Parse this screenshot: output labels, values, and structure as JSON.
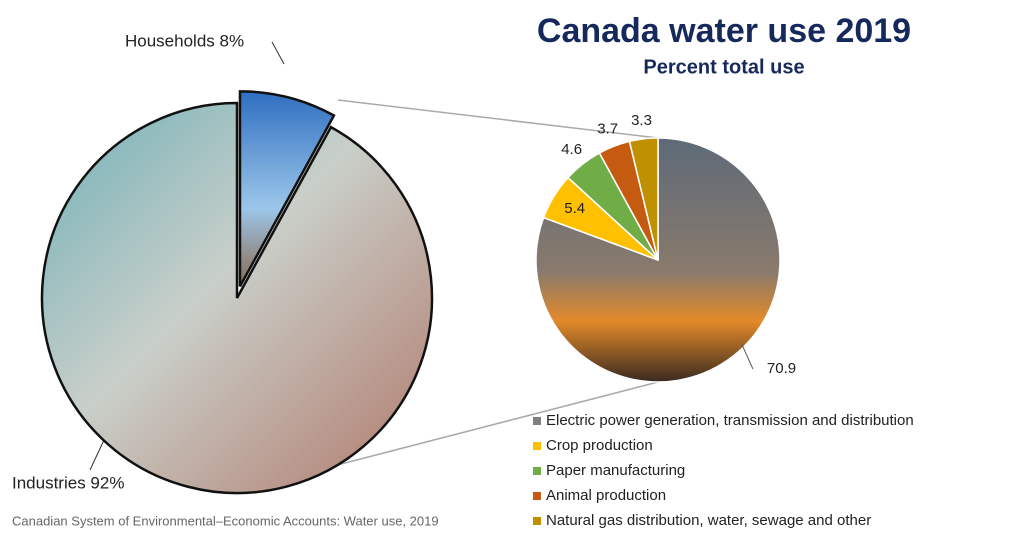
{
  "chart_data": [
    {
      "type": "pie",
      "title": "Canada water use 2019",
      "subtitle": "Percent total use",
      "source": "Canadian System of Environmental–Economic Accounts: Water use, 2019",
      "values": [
        92,
        8
      ],
      "value_labels": [
        "Industries 92%",
        "Households 8%"
      ],
      "colors": [
        "#b9c6c9",
        "#4a83c4"
      ]
    },
    {
      "type": "pie",
      "categories": [
        "Electric power generation, transmission and distribution",
        "Crop production",
        "Paper manufacturing",
        "Animal production",
        "Natural gas distribution, water, sewage and other"
      ],
      "values": [
        70.9,
        5.4,
        4.6,
        3.7,
        3.3
      ],
      "colors": [
        "#7f7f7f",
        "#ffc000",
        "#70ad47",
        "#c55a11",
        "#bf9000"
      ]
    }
  ]
}
